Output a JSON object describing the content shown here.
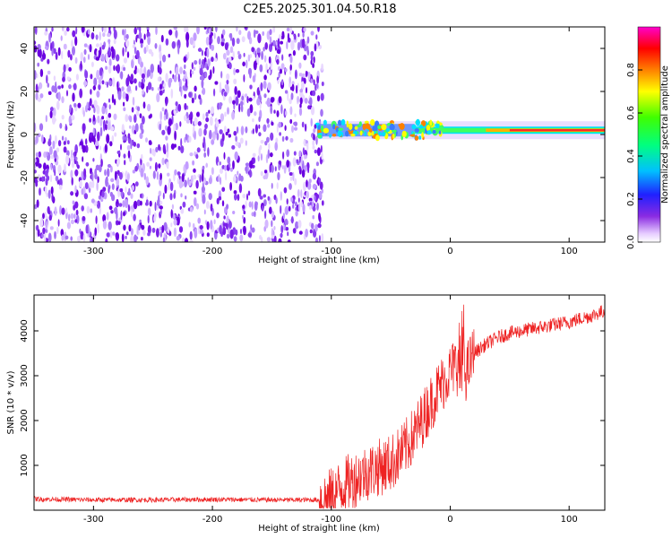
{
  "figure": {
    "title": "C2E5.2025.301.04.50.R18"
  },
  "colors": {
    "snr_line": "#ee2222",
    "spectrogram_noise": "#8a2be2",
    "ridge_core": "#ff2a2a",
    "ridge_halo": "#00e0ff"
  },
  "chart_data": [
    {
      "type": "heatmap",
      "name": "spectrogram",
      "xlabel": "Height of straight line (km)",
      "ylabel": "Frequency (Hz)",
      "xlim": [
        -350,
        130
      ],
      "ylim": [
        -50,
        50
      ],
      "xticks": [
        -300,
        -200,
        -100,
        0,
        100
      ],
      "yticks": [
        -40,
        -20,
        0,
        20,
        40
      ],
      "noise_region_km": [
        -350,
        -110
      ],
      "signal_onset_km": -112,
      "signal_ridge_hz": 2,
      "colorbar": {
        "label": "Normalized spectral amplitude",
        "range": [
          0.0,
          1.0
        ],
        "ticks": [
          0.0,
          0.2,
          0.4,
          0.6,
          0.8
        ],
        "tick_labels": [
          "0.0",
          "0.2",
          "0.4",
          "0.6",
          "0.8"
        ],
        "colormap": "hsv-like: white, purple, blue, cyan, green, yellow, red, magenta"
      }
    },
    {
      "type": "line",
      "name": "snr",
      "xlabel": "Height of straight line (km)",
      "ylabel": "SNR (10 * v/v)",
      "xlim": [
        -350,
        130
      ],
      "ylim": [
        0,
        4800
      ],
      "xticks": [
        -300,
        -200,
        -100,
        0,
        100
      ],
      "yticks": [
        1000,
        2000,
        3000,
        4000
      ],
      "series": [
        {
          "name": "SNR",
          "x": [
            -350,
            -300,
            -250,
            -200,
            -150,
            -110,
            -100,
            -90,
            -80,
            -70,
            -60,
            -50,
            -40,
            -30,
            -20,
            -10,
            0,
            5,
            10,
            20,
            30,
            40,
            50,
            60,
            80,
            100,
            120,
            130
          ],
          "values": [
            250,
            230,
            230,
            240,
            230,
            230,
            300,
            550,
            700,
            850,
            950,
            1050,
            1300,
            1700,
            2200,
            2700,
            3100,
            3250,
            2850,
            3500,
            3700,
            3850,
            3950,
            4000,
            4100,
            4200,
            4350,
            4450
          ]
        }
      ]
    }
  ]
}
